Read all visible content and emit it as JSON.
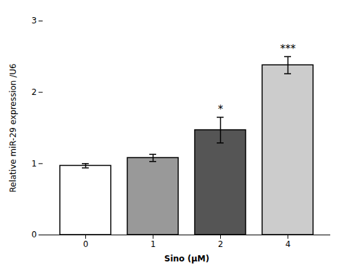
{
  "chart_data": {
    "type": "bar",
    "categories": [
      "0",
      "1",
      "2",
      "4"
    ],
    "values": [
      0.97,
      1.08,
      1.47,
      2.38
    ],
    "errors": [
      0.03,
      0.05,
      0.18,
      0.12
    ],
    "colors": [
      "#ffffff",
      "#999999",
      "#555555",
      "#cccccc"
    ],
    "significance": [
      null,
      null,
      "*",
      "***"
    ],
    "xlabel": "Sino (μM)",
    "ylabel": "Relative miR-29 expression /U6",
    "ylim": [
      0,
      3
    ],
    "yticks": [
      0,
      1,
      2,
      3
    ],
    "grid": false
  }
}
